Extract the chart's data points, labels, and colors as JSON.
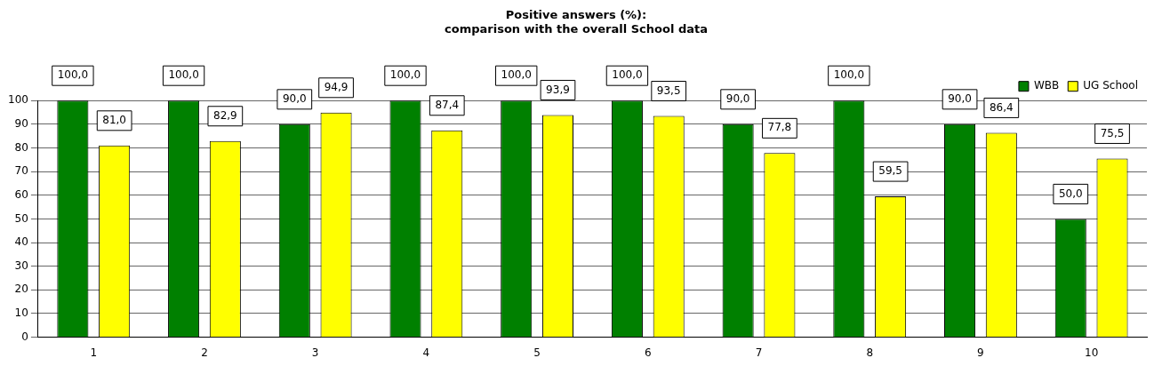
{
  "chart_data": {
    "type": "bar",
    "title": "Positive answers (%):\ncomparison with the overall School data",
    "categories": [
      "1",
      "2",
      "3",
      "4",
      "5",
      "6",
      "7",
      "8",
      "9",
      "10"
    ],
    "series": [
      {
        "name": "WBB",
        "color": "#008000",
        "values": [
          100,
          100,
          90,
          100,
          100,
          100,
          90,
          100,
          90,
          50
        ],
        "value_labels": [
          "100,0",
          "100,0",
          "90,0",
          "100,0",
          "100,0",
          "100,0",
          "90,0",
          "100,0",
          "90,0",
          "50,0"
        ]
      },
      {
        "name": "UG School",
        "color": "#ffff00",
        "values": [
          81,
          82.9,
          94.9,
          87.4,
          93.9,
          93.5,
          77.8,
          59.5,
          86.4,
          75.5
        ],
        "value_labels": [
          "81,0",
          "82,9",
          "94,9",
          "87,4",
          "93,9",
          "93,5",
          "77,8",
          "59,5",
          "86,4",
          "75,5"
        ]
      }
    ],
    "ylim": [
      0,
      100
    ],
    "yticks": [
      0,
      10,
      20,
      30,
      40,
      50,
      60,
      70,
      80,
      90,
      100
    ],
    "grid": "y",
    "legend": "top right"
  }
}
